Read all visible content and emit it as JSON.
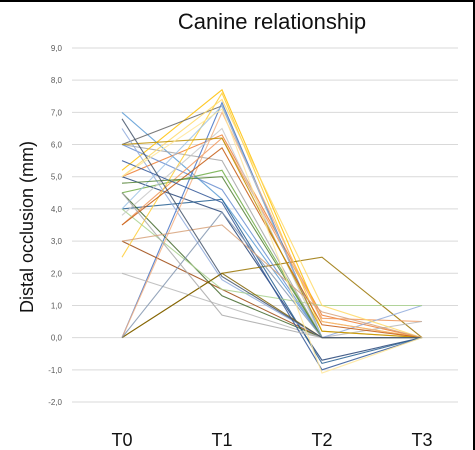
{
  "chart_data": {
    "type": "line",
    "title": "Canine relationship",
    "xlabel": "",
    "ylabel": "Distal occlusion (mm)",
    "categories": [
      "T0",
      "T1",
      "T2",
      "T3"
    ],
    "ylim": [
      -2.0,
      9.0
    ],
    "yticks": [
      "9,0",
      "8,0",
      "7,0",
      "6,0",
      "5,0",
      "4,0",
      "3,0",
      "2,0",
      "1,0",
      "0,0",
      "-1,0",
      "-2,0"
    ],
    "grid": true,
    "legend": "none",
    "series": [
      {
        "color": "#5b9bd5",
        "values": [
          7.0,
          4.3,
          0.0,
          0.0
        ]
      },
      {
        "color": "#ed7d31",
        "values": [
          5.0,
          6.3,
          0.7,
          0.0
        ]
      },
      {
        "color": "#a5a5a5",
        "values": [
          6.0,
          5.5,
          0.0,
          0.0
        ]
      },
      {
        "color": "#ffc000",
        "values": [
          5.2,
          7.7,
          0.5,
          0.0
        ]
      },
      {
        "color": "#4472c4",
        "values": [
          0.0,
          7.3,
          0.0,
          0.0
        ]
      },
      {
        "color": "#70ad47",
        "values": [
          4.5,
          5.2,
          0.0,
          0.0
        ]
      },
      {
        "color": "#264478",
        "values": [
          5.0,
          3.9,
          -0.7,
          0.0
        ]
      },
      {
        "color": "#9e480e",
        "values": [
          3.0,
          1.5,
          0.0,
          0.0
        ]
      },
      {
        "color": "#636363",
        "values": [
          6.0,
          7.2,
          0.0,
          0.0
        ]
      },
      {
        "color": "#997300",
        "values": [
          0.0,
          2.0,
          2.5,
          0.0
        ]
      },
      {
        "color": "#255e91",
        "values": [
          4.0,
          4.3,
          -0.8,
          0.0
        ]
      },
      {
        "color": "#43682b",
        "values": [
          4.5,
          1.3,
          0.0,
          0.0
        ]
      },
      {
        "color": "#698ed0",
        "values": [
          6.0,
          4.6,
          0.0,
          0.0
        ]
      },
      {
        "color": "#f1975a",
        "values": [
          3.5,
          6.2,
          0.6,
          0.5
        ]
      },
      {
        "color": "#b7b7b7",
        "values": [
          2.0,
          1.0,
          0.0,
          0.5
        ]
      },
      {
        "color": "#ffcd33",
        "values": [
          2.5,
          7.6,
          0.2,
          0.0
        ]
      },
      {
        "color": "#8faadc",
        "values": [
          6.5,
          1.8,
          0.0,
          1.0
        ]
      },
      {
        "color": "#a9d18e",
        "values": [
          4.0,
          1.5,
          1.0,
          1.0
        ]
      },
      {
        "color": "#f4b183",
        "values": [
          0.0,
          7.0,
          0.5,
          0.0
        ]
      },
      {
        "color": "#c9c9c9",
        "values": [
          3.8,
          6.5,
          0.0,
          0.0
        ]
      },
      {
        "color": "#ffd966",
        "values": [
          5.0,
          7.4,
          1.0,
          0.0
        ]
      },
      {
        "color": "#9dc3e6",
        "values": [
          4.0,
          7.2,
          0.0,
          0.0
        ]
      },
      {
        "color": "#c55a11",
        "values": [
          3.5,
          5.9,
          0.4,
          0.0
        ]
      },
      {
        "color": "#7f6000",
        "values": [
          0.0,
          2.0,
          0.0,
          0.0
        ]
      },
      {
        "color": "#2f5597",
        "values": [
          5.5,
          4.2,
          -1.0,
          0.0
        ]
      },
      {
        "color": "#548235",
        "values": [
          4.8,
          5.0,
          0.0,
          0.0
        ]
      },
      {
        "color": "#8497b0",
        "values": [
          0.0,
          3.9,
          0.0,
          0.0
        ]
      },
      {
        "color": "#a9a9a9",
        "values": [
          4.5,
          0.7,
          0.0,
          0.0
        ]
      },
      {
        "color": "#bf9000",
        "values": [
          6.0,
          6.2,
          0.2,
          0.0
        ]
      },
      {
        "color": "#d6a179",
        "values": [
          3.0,
          3.5,
          0.8,
          0.0
        ]
      },
      {
        "color": "#44546a",
        "values": [
          6.8,
          1.9,
          0.0,
          0.0
        ]
      },
      {
        "color": "#ffe699",
        "values": [
          5.0,
          7.1,
          -1.1,
          0.0
        ]
      }
    ]
  }
}
